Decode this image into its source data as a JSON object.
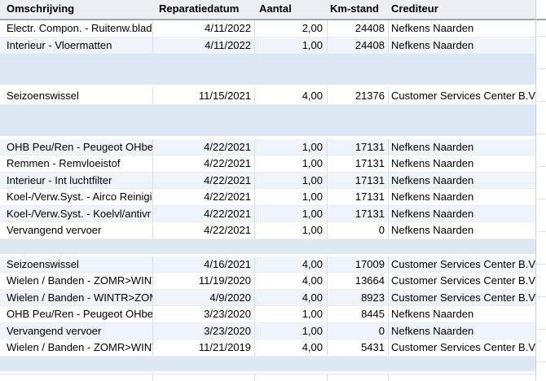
{
  "table": {
    "headers": [
      "Omschrijving",
      "Reparatiedatum",
      "Aantal",
      "Km-stand",
      "Crediteur"
    ],
    "rows": [
      {
        "type": "item",
        "cells": [
          "Electr. Compon. - Ruitenw.blad",
          "4/11/2022",
          "2,00",
          "24408",
          "Nefkens Naarden"
        ]
      },
      {
        "type": "item",
        "cells": [
          "Interieur - Vloermatten",
          "4/11/2022",
          "1,00",
          "24408",
          "Nefkens Naarden"
        ]
      },
      {
        "type": "gap-large"
      },
      {
        "type": "item",
        "cells": [
          "Seizoenswissel",
          "11/15/2021",
          "4,00",
          "21376",
          "Customer Services Center B.V."
        ]
      },
      {
        "type": "gap-large"
      },
      {
        "type": "item",
        "cells": [
          "OHB Peu/Ren - Peugeot OHbe",
          "4/22/2021",
          "1,00",
          "17131",
          "Nefkens Naarden"
        ]
      },
      {
        "type": "item",
        "cells": [
          "Remmen - Remvloeistof",
          "4/22/2021",
          "1,00",
          "17131",
          "Nefkens Naarden"
        ]
      },
      {
        "type": "item",
        "cells": [
          "Interieur - Int luchtfilter",
          "4/22/2021",
          "1,00",
          "17131",
          "Nefkens Naarden"
        ]
      },
      {
        "type": "item",
        "cells": [
          "Koel-/Verw.Syst. - Airco Reinigi",
          "4/22/2021",
          "1,00",
          "17131",
          "Nefkens Naarden"
        ]
      },
      {
        "type": "item",
        "cells": [
          "Koel-/Verw.Syst. - Koelvl/antivr",
          "4/22/2021",
          "1,00",
          "17131",
          "Nefkens Naarden"
        ]
      },
      {
        "type": "item",
        "cells": [
          "Vervangend vervoer",
          "4/22/2021",
          "1,00",
          "0",
          "Nefkens Naarden"
        ]
      },
      {
        "type": "gap-small"
      },
      {
        "type": "item",
        "cells": [
          "Seizoenswissel",
          "4/16/2021",
          "4,00",
          "17009",
          "Customer Services Center B.V."
        ]
      },
      {
        "type": "item",
        "cells": [
          "Wielen / Banden - ZOMR>WINT",
          "11/19/2020",
          "4,00",
          "13664",
          "Customer Services Center B.V."
        ]
      },
      {
        "type": "item",
        "cells": [
          "Wielen / Banden - WINTR>ZOM",
          "4/9/2020",
          "4,00",
          "8923",
          "Customer Services Center B.V."
        ]
      },
      {
        "type": "item",
        "cells": [
          "OHB Peu/Ren - Peugeot OHbe",
          "3/23/2020",
          "1,00",
          "8445",
          "Nefkens Naarden"
        ]
      },
      {
        "type": "item",
        "cells": [
          "Vervangend vervoer",
          "3/23/2020",
          "1,00",
          "0",
          "Nefkens Naarden"
        ]
      },
      {
        "type": "item",
        "cells": [
          "Wielen / Banden - ZOMR>WINT",
          "11/21/2019",
          "4,00",
          "5431",
          "Customer Services Center B.V."
        ]
      },
      {
        "type": "gap-small"
      }
    ]
  },
  "colors": {
    "header_bg": "#eceef1",
    "header_border": "#a2a6ad",
    "row_white": "#ffffff",
    "row_tint": "#eff4fa",
    "empty_row_blue": "#dee8f4",
    "gridline": "#d9dee6"
  }
}
